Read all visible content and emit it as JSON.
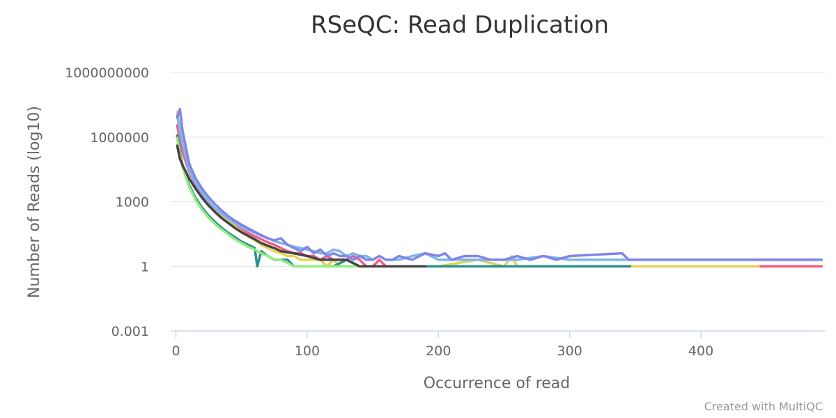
{
  "chart_data": {
    "type": "line",
    "title": "RSeQC: Read Duplication",
    "xlabel": "Occurrence of read",
    "ylabel": "Number of Reads (log10)",
    "credit": "Created with MultiQC",
    "y_scale": "log",
    "xlim": [
      -4,
      495
    ],
    "ylim": [
      0.001,
      1000000000
    ],
    "x_ticks": [
      0,
      100,
      200,
      300,
      400
    ],
    "y_ticks": [
      0.001,
      1,
      1000,
      1000000,
      1000000000
    ],
    "x_tick_labels": [
      "0",
      "100",
      "200",
      "300",
      "400"
    ],
    "y_tick_labels": [
      "0.001",
      "1",
      "1000",
      "1000000",
      "1000000000"
    ],
    "grid": true,
    "legend": "none",
    "series": [
      {
        "color": "#f15c80",
        "points": [
          [
            1,
            3500000
          ],
          [
            3,
            700000
          ],
          [
            5,
            200000
          ],
          [
            10,
            25000
          ],
          [
            15,
            6000
          ],
          [
            20,
            2200
          ],
          [
            25,
            900
          ],
          [
            30,
            420
          ],
          [
            35,
            210
          ],
          [
            40,
            125
          ],
          [
            45,
            75
          ],
          [
            50,
            50
          ],
          [
            55,
            35
          ],
          [
            60,
            25
          ],
          [
            65,
            18
          ],
          [
            70,
            13
          ],
          [
            75,
            10
          ],
          [
            80,
            7
          ],
          [
            85,
            5
          ],
          [
            90,
            4
          ],
          [
            95,
            4
          ],
          [
            100,
            3
          ],
          [
            105,
            3
          ],
          [
            110,
            2
          ],
          [
            115,
            3
          ],
          [
            120,
            2
          ],
          [
            125,
            2
          ],
          [
            130,
            2
          ],
          [
            135,
            3
          ],
          [
            140,
            2
          ],
          [
            145,
            1
          ],
          [
            150,
            1
          ],
          [
            155,
            2
          ],
          [
            160,
            1
          ],
          [
            170,
            1
          ],
          [
            180,
            1
          ],
          [
            190,
            1
          ],
          [
            200,
            1
          ],
          [
            220,
            1
          ],
          [
            240,
            1
          ],
          [
            260,
            1
          ],
          [
            280,
            1
          ],
          [
            300,
            1
          ],
          [
            350,
            1
          ],
          [
            400,
            1
          ],
          [
            444,
            1
          ],
          [
            492,
            1
          ]
        ]
      },
      {
        "color": "#e4d354",
        "points": [
          [
            1,
            15000000
          ],
          [
            3,
            2500000
          ],
          [
            5,
            500000
          ],
          [
            10,
            45000
          ],
          [
            15,
            9000
          ],
          [
            20,
            2800
          ],
          [
            25,
            1100
          ],
          [
            30,
            480
          ],
          [
            35,
            230
          ],
          [
            40,
            130
          ],
          [
            45,
            70
          ],
          [
            50,
            42
          ],
          [
            55,
            25
          ],
          [
            60,
            16
          ],
          [
            65,
            10
          ],
          [
            70,
            7
          ],
          [
            75,
            5
          ],
          [
            80,
            4
          ],
          [
            85,
            3
          ],
          [
            90,
            3
          ],
          [
            95,
            2
          ],
          [
            100,
            2
          ],
          [
            105,
            2
          ],
          [
            110,
            2
          ],
          [
            115,
            1
          ],
          [
            120,
            2
          ],
          [
            125,
            1
          ],
          [
            130,
            1
          ],
          [
            140,
            1
          ],
          [
            150,
            1
          ],
          [
            160,
            1
          ],
          [
            170,
            1
          ],
          [
            180,
            1
          ],
          [
            200,
            1
          ],
          [
            230,
            2
          ],
          [
            250,
            1
          ],
          [
            256,
            3
          ],
          [
            260,
            1
          ],
          [
            300,
            1
          ],
          [
            350,
            1
          ],
          [
            400,
            1
          ],
          [
            444,
            1
          ]
        ]
      },
      {
        "color": "#2b908f",
        "points": [
          [
            1,
            1200000
          ],
          [
            3,
            200000
          ],
          [
            5,
            50000
          ],
          [
            10,
            6000
          ],
          [
            15,
            1500
          ],
          [
            20,
            520
          ],
          [
            25,
            220
          ],
          [
            30,
            110
          ],
          [
            35,
            60
          ],
          [
            40,
            35
          ],
          [
            45,
            22
          ],
          [
            50,
            14
          ],
          [
            55,
            10
          ],
          [
            60,
            7
          ],
          [
            62,
            1
          ],
          [
            65,
            5
          ],
          [
            70,
            3
          ],
          [
            75,
            2
          ],
          [
            80,
            2
          ],
          [
            85,
            2
          ],
          [
            90,
            1
          ],
          [
            100,
            1
          ],
          [
            110,
            1
          ],
          [
            120,
            1
          ],
          [
            130,
            2
          ],
          [
            140,
            1
          ],
          [
            150,
            1
          ],
          [
            160,
            1
          ],
          [
            170,
            1
          ],
          [
            180,
            1
          ],
          [
            200,
            1
          ],
          [
            250,
            1
          ],
          [
            300,
            1
          ],
          [
            346,
            1
          ]
        ]
      },
      {
        "color": "#90ed7d",
        "points": [
          [
            1,
            900000
          ],
          [
            3,
            150000
          ],
          [
            5,
            40000
          ],
          [
            10,
            5000
          ],
          [
            15,
            1200
          ],
          [
            20,
            420
          ],
          [
            25,
            180
          ],
          [
            30,
            90
          ],
          [
            35,
            50
          ],
          [
            40,
            30
          ],
          [
            45,
            18
          ],
          [
            50,
            12
          ],
          [
            55,
            8
          ],
          [
            60,
            6
          ],
          [
            65,
            4
          ],
          [
            70,
            3
          ],
          [
            75,
            2
          ],
          [
            80,
            2
          ],
          [
            90,
            1
          ],
          [
            100,
            1
          ],
          [
            120,
            1
          ],
          [
            150,
            1
          ],
          [
            180,
            1
          ]
        ]
      },
      {
        "color": "#434348",
        "points": [
          [
            1,
            400000
          ],
          [
            3,
            100000
          ],
          [
            5,
            50000
          ],
          [
            10,
            12000
          ],
          [
            15,
            4000
          ],
          [
            20,
            1500
          ],
          [
            25,
            650
          ],
          [
            30,
            320
          ],
          [
            35,
            170
          ],
          [
            40,
            100
          ],
          [
            45,
            60
          ],
          [
            50,
            38
          ],
          [
            55,
            26
          ],
          [
            60,
            18
          ],
          [
            65,
            12
          ],
          [
            70,
            9
          ],
          [
            75,
            7
          ],
          [
            80,
            5
          ],
          [
            90,
            4
          ],
          [
            100,
            3
          ],
          [
            110,
            2
          ],
          [
            120,
            2
          ],
          [
            130,
            2
          ],
          [
            140,
            1
          ],
          [
            150,
            1
          ],
          [
            160,
            1
          ],
          [
            170,
            1
          ],
          [
            180,
            1
          ],
          [
            190,
            1
          ]
        ]
      },
      {
        "color": "#7cb5ec",
        "points": [
          [
            1,
            10000000
          ],
          [
            3,
            2000000
          ],
          [
            5,
            500000
          ],
          [
            10,
            30000
          ],
          [
            15,
            7000
          ],
          [
            20,
            2500
          ],
          [
            25,
            1000
          ],
          [
            30,
            500
          ],
          [
            35,
            270
          ],
          [
            40,
            160
          ],
          [
            45,
            100
          ],
          [
            50,
            68
          ],
          [
            55,
            48
          ],
          [
            60,
            36
          ],
          [
            65,
            26
          ],
          [
            70,
            20
          ],
          [
            75,
            15
          ],
          [
            80,
            12
          ],
          [
            85,
            10
          ],
          [
            90,
            8
          ],
          [
            95,
            7
          ],
          [
            100,
            6
          ],
          [
            105,
            5
          ],
          [
            110,
            4
          ],
          [
            115,
            4
          ],
          [
            120,
            6
          ],
          [
            125,
            5
          ],
          [
            130,
            3
          ],
          [
            135,
            4
          ],
          [
            140,
            3
          ],
          [
            145,
            3
          ],
          [
            150,
            2
          ],
          [
            155,
            3
          ],
          [
            160,
            2
          ],
          [
            170,
            2
          ],
          [
            180,
            3
          ],
          [
            190,
            4
          ],
          [
            200,
            2
          ],
          [
            210,
            2
          ],
          [
            220,
            2
          ],
          [
            240,
            2
          ],
          [
            260,
            2
          ],
          [
            280,
            3
          ],
          [
            300,
            2
          ],
          [
            340,
            2
          ],
          [
            400,
            2
          ],
          [
            440,
            2
          ],
          [
            492,
            2
          ]
        ]
      },
      {
        "color": "#8085e9",
        "points": [
          [
            1,
            8000000
          ],
          [
            3,
            20000000
          ],
          [
            5,
            2000000
          ],
          [
            10,
            60000
          ],
          [
            15,
            12000
          ],
          [
            20,
            4000
          ],
          [
            25,
            1600
          ],
          [
            30,
            750
          ],
          [
            35,
            380
          ],
          [
            40,
            210
          ],
          [
            45,
            130
          ],
          [
            50,
            85
          ],
          [
            55,
            58
          ],
          [
            60,
            40
          ],
          [
            65,
            28
          ],
          [
            70,
            20
          ],
          [
            75,
            16
          ],
          [
            80,
            20
          ],
          [
            85,
            10
          ],
          [
            90,
            7
          ],
          [
            95,
            5
          ],
          [
            100,
            8
          ],
          [
            105,
            4
          ],
          [
            110,
            6
          ],
          [
            115,
            3
          ],
          [
            120,
            4
          ],
          [
            125,
            3
          ],
          [
            130,
            3
          ],
          [
            135,
            2
          ],
          [
            140,
            3
          ],
          [
            145,
            2
          ],
          [
            150,
            2
          ],
          [
            155,
            3
          ],
          [
            160,
            2
          ],
          [
            165,
            2
          ],
          [
            170,
            3
          ],
          [
            180,
            2
          ],
          [
            190,
            4
          ],
          [
            200,
            3
          ],
          [
            205,
            4
          ],
          [
            210,
            2
          ],
          [
            220,
            3
          ],
          [
            230,
            3
          ],
          [
            240,
            2
          ],
          [
            250,
            2
          ],
          [
            260,
            3
          ],
          [
            270,
            2
          ],
          [
            280,
            3
          ],
          [
            290,
            2
          ],
          [
            300,
            3
          ],
          [
            340,
            4
          ],
          [
            345,
            2
          ],
          [
            400,
            2
          ],
          [
            450,
            2
          ],
          [
            492,
            2
          ]
        ]
      }
    ]
  }
}
